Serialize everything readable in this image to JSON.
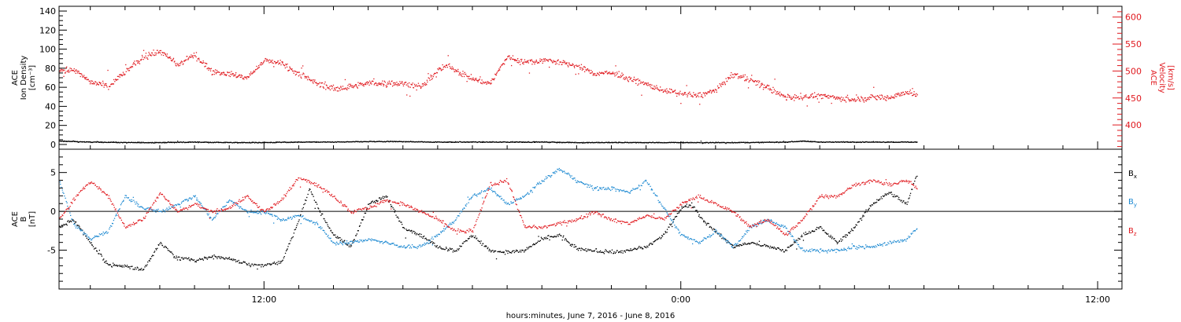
{
  "colors": {
    "axis": "#000000",
    "density": "#000000",
    "velocity": "#e0191f",
    "bx": "#000000",
    "by": "#1f8ad2",
    "bz": "#e0191f"
  },
  "xlabel": "hours:minutes, June  7, 2016 - June  8, 2016",
  "x_ticks": [
    {
      "hour": 12,
      "label": "12:00"
    },
    {
      "hour": 24,
      "label": "0:00"
    },
    {
      "hour": 36,
      "label": "12:00"
    }
  ],
  "chart_data": [
    {
      "type": "scatter",
      "title": "",
      "x_unit": "hours since June 7, 2016 00:00",
      "x_range": [
        6.1,
        36.7
      ],
      "data_end_hour": 30.8,
      "left_axis": {
        "label_lines": [
          "ACE",
          "Ion Density",
          "[cm⁻³]"
        ],
        "ylim": [
          -5,
          145
        ],
        "ticks": [
          "0",
          "20",
          "40",
          "60",
          "80",
          "100",
          "120",
          "140"
        ],
        "tick_values": [
          0,
          20,
          40,
          60,
          80,
          100,
          120,
          140
        ]
      },
      "right_axis": {
        "label_lines": [
          "ACE",
          "Velocity",
          "[km/s]"
        ],
        "ylim": [
          355,
          620
        ],
        "ticks": [
          "400",
          "450",
          "500",
          "550",
          "600"
        ],
        "tick_values": [
          400,
          450,
          500,
          550,
          600
        ]
      },
      "series": [
        {
          "axis": "left",
          "color_key": "density",
          "x": [
            6.1,
            7,
            8,
            9,
            10,
            11,
            12,
            13,
            14,
            15,
            16,
            17,
            18,
            19,
            20,
            21,
            22,
            23,
            24,
            25,
            26,
            27,
            27.5,
            28,
            29,
            30,
            30.8
          ],
          "y": [
            4,
            3,
            2.5,
            2.5,
            3,
            2.5,
            2.5,
            3,
            3,
            3.5,
            3.5,
            3,
            3,
            3,
            3,
            2.5,
            2.5,
            2.5,
            2.5,
            2.5,
            2.5,
            3,
            4,
            3,
            3,
            3,
            3
          ]
        },
        {
          "axis": "right",
          "color_key": "velocity",
          "x": [
            6.1,
            6.5,
            7,
            7.5,
            8,
            8.5,
            9,
            9.5,
            10,
            10.5,
            11,
            11.5,
            12,
            12.5,
            13,
            13.5,
            14,
            14.5,
            15,
            15.5,
            16,
            16.5,
            17,
            17.3,
            17.6,
            18,
            18.5,
            19,
            19.5,
            20,
            20.5,
            21,
            21.5,
            22,
            22.5,
            23,
            23.5,
            24,
            24.5,
            25,
            25.5,
            26,
            26.5,
            27,
            27.5,
            28,
            28.5,
            29,
            29.5,
            30,
            30.5,
            30.8
          ],
          "y": [
            500,
            505,
            480,
            472,
            500,
            525,
            538,
            512,
            530,
            500,
            495,
            488,
            520,
            515,
            495,
            478,
            468,
            472,
            478,
            478,
            478,
            470,
            502,
            512,
            498,
            486,
            478,
            527,
            517,
            521,
            517,
            510,
            496,
            497,
            487,
            476,
            465,
            458,
            455,
            465,
            495,
            484,
            470,
            452,
            452,
            455,
            450,
            448,
            452,
            452,
            462,
            455
          ]
        }
      ]
    },
    {
      "type": "scatter",
      "title": "",
      "x_unit": "hours since June 7, 2016 00:00",
      "x_range": [
        6.1,
        36.7
      ],
      "data_end_hour": 30.8,
      "left_axis": {
        "label_lines": [
          "ACE",
          "B",
          "[nT]"
        ],
        "ylim": [
          -10,
          8
        ],
        "ticks": [
          "-5",
          "0",
          "5"
        ],
        "tick_values": [
          -5,
          0,
          5
        ]
      },
      "zero_line": true,
      "legend": [
        {
          "label": "B",
          "subscript": "x",
          "color_key": "bx"
        },
        {
          "label": "B",
          "subscript": "y",
          "color_key": "by"
        },
        {
          "label": "B",
          "subscript": "z",
          "color_key": "bz"
        }
      ],
      "series": [
        {
          "color_key": "bx",
          "x": [
            6.1,
            6.5,
            7,
            7.5,
            8,
            8.5,
            9,
            9.5,
            10,
            10.5,
            11,
            11.3,
            11.6,
            12,
            12.5,
            13,
            13.3,
            13.6,
            14,
            14.5,
            15,
            15.5,
            16,
            16.5,
            17,
            17.5,
            18,
            18.5,
            19,
            19.5,
            20,
            20.5,
            21,
            21.5,
            22,
            22.5,
            23,
            23.5,
            24,
            24.3,
            24.6,
            25,
            25.5,
            26,
            26.5,
            27,
            27.5,
            28,
            28.5,
            29,
            29.5,
            30,
            30.5,
            30.8
          ],
          "y": [
            -2,
            -1,
            -4,
            -6.8,
            -7,
            -7.5,
            -4,
            -6,
            -6.2,
            -5.8,
            -6,
            -6.5,
            -6.8,
            -6.8,
            -6.5,
            -1,
            3,
            0,
            -3,
            -4.5,
            1,
            2,
            -2,
            -3,
            -4.5,
            -5,
            -3,
            -5,
            -5.2,
            -5,
            -3.5,
            -3,
            -4.8,
            -5,
            -5.2,
            -5,
            -4.5,
            -3,
            0.5,
            1,
            -1,
            -2.5,
            -4.5,
            -4,
            -4.5,
            -5,
            -3,
            -2,
            -4,
            -2,
            1,
            2.5,
            1,
            5
          ]
        },
        {
          "color_key": "by",
          "x": [
            6.1,
            6.5,
            7,
            7.5,
            8,
            8.5,
            9,
            9.5,
            10,
            10.5,
            11,
            11.5,
            12,
            12.5,
            13,
            13.5,
            14,
            14.5,
            15,
            15.5,
            16,
            16.5,
            17,
            17.5,
            18,
            18.5,
            19,
            19.5,
            20,
            20.5,
            21,
            21.5,
            22,
            22.5,
            23,
            23.5,
            24,
            24.5,
            25,
            25.5,
            26,
            26.5,
            27,
            27.5,
            28,
            28.5,
            29,
            29.5,
            30,
            30.5,
            30.8
          ],
          "y": [
            4,
            -1.5,
            -3.5,
            -2.5,
            2,
            0.5,
            0,
            1,
            2,
            -1,
            1.5,
            0,
            0,
            -1,
            -0.5,
            -1.5,
            -4,
            -4,
            -3.5,
            -4,
            -4.5,
            -4.5,
            -3,
            -1,
            2,
            3,
            1,
            2,
            4,
            5.5,
            4,
            3,
            3,
            2.5,
            4,
            0.5,
            -3,
            -4,
            -2.5,
            -4.5,
            -2,
            -1,
            -2,
            -5,
            -5,
            -5,
            -4.5,
            -4.5,
            -4,
            -3.5,
            -2
          ]
        },
        {
          "color_key": "bz",
          "x": [
            6.1,
            6.5,
            7,
            7.5,
            8,
            8.5,
            9,
            9.5,
            10,
            10.5,
            11,
            11.5,
            12,
            12.5,
            13,
            13.5,
            14,
            14.5,
            15,
            15.5,
            16,
            16.5,
            17,
            17.5,
            18,
            18.5,
            19,
            19.5,
            20,
            20.5,
            21,
            21.5,
            22,
            22.5,
            23,
            23.5,
            24,
            24.5,
            25,
            25.5,
            26,
            26.5,
            27,
            27.5,
            28,
            28.5,
            29,
            29.5,
            30,
            30.5,
            30.8
          ],
          "y": [
            -1,
            1.5,
            4,
            2,
            -2,
            -1,
            2.5,
            0,
            1,
            0,
            0.5,
            2,
            0,
            1.5,
            4.5,
            3.5,
            2,
            0,
            0.5,
            1.5,
            1,
            0,
            -1,
            -2.5,
            -2.5,
            3.5,
            4,
            -2,
            -2,
            -1.5,
            -1,
            0,
            -1,
            -1.5,
            -0.5,
            -1,
            1,
            2,
            1,
            0,
            -2,
            -1,
            -3,
            -1,
            2,
            2,
            3.5,
            4,
            3.5,
            4,
            3
          ]
        }
      ]
    }
  ]
}
